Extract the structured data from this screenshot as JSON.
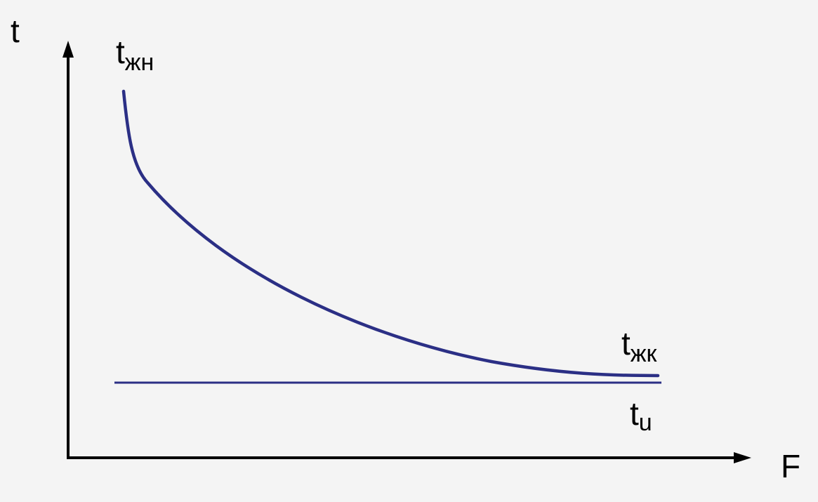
{
  "axes": {
    "y_label": "t",
    "x_label": "F"
  },
  "curves": [
    {
      "label": {
        "base": "t",
        "sub": "жн"
      }
    },
    {
      "label": {
        "base": "t",
        "sub": "жк"
      }
    },
    {
      "label": {
        "base": "t",
        "sub": "u"
      }
    }
  ]
}
